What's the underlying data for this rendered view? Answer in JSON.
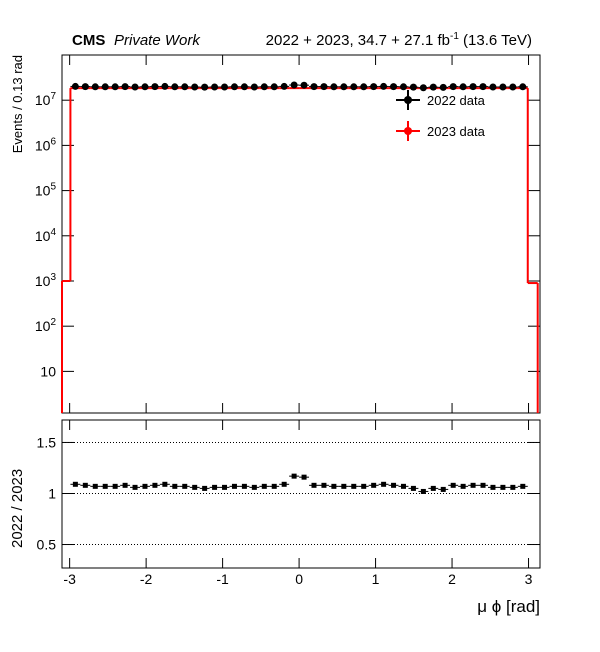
{
  "chart_data": [
    {
      "type": "histogram",
      "title": "CMS",
      "subtitle": "Private Work",
      "annotation": "2022 + 2023, 34.7 + 27.1 fb^-1 (13.6 TeV)",
      "y_label": "Events / 0.13 rad",
      "log_scale": true,
      "xlim": [
        -3.1,
        3.15
      ],
      "xticks": [
        -3,
        -2,
        -1,
        0,
        1,
        2,
        3
      ],
      "ylim": [
        1.2,
        100000000
      ],
      "yticks": [
        10,
        {
          "value": 100,
          "label": "10^2"
        },
        {
          "value": 1000,
          "label": "10^3"
        },
        {
          "value": 10000,
          "label": "10^4"
        },
        {
          "value": 100000,
          "label": "10^5"
        },
        {
          "value": 1000000,
          "label": "10^6"
        },
        {
          "value": 10000000,
          "label": "10^7"
        }
      ],
      "bins": [
        -3.12,
        -2.99,
        -2.86,
        -2.73,
        -2.6,
        -2.47,
        -2.34,
        -2.21,
        -2.08,
        -1.95,
        -1.82,
        -1.69,
        -1.56,
        -1.43,
        -1.3,
        -1.17,
        -1.04,
        -0.91,
        -0.78,
        -0.65,
        -0.52,
        -0.39,
        -0.26,
        -0.13,
        0,
        0.13,
        0.26,
        0.39,
        0.52,
        0.65,
        0.78,
        0.91,
        1.04,
        1.17,
        1.3,
        1.43,
        1.56,
        1.69,
        1.82,
        1.95,
        2.08,
        2.21,
        2.34,
        2.47,
        2.6,
        2.73,
        2.86,
        2.99,
        3.12
      ],
      "legend": "upper right",
      "series": [
        {
          "name": "2022 data",
          "color": "#000000",
          "style": "points",
          "values": [
            null,
            20170000,
            19980000,
            19800000,
            19800000,
            19800000,
            19980000,
            19610000,
            19800000,
            19980000,
            20170000,
            19800000,
            19800000,
            19610000,
            19430000,
            19610000,
            19610000,
            19800000,
            19800000,
            19610000,
            19800000,
            19800000,
            20170000,
            21650000,
            21460000,
            19980000,
            19980000,
            19800000,
            19800000,
            19800000,
            19800000,
            19980000,
            20170000,
            19980000,
            19800000,
            19430000,
            18870000,
            19430000,
            19240000,
            19980000,
            19800000,
            19980000,
            19980000,
            19610000,
            19610000,
            19610000,
            19800000,
            null
          ]
        },
        {
          "name": "2023 data",
          "color": "#ff0000",
          "style": "step",
          "values": [
            1000,
            18500000,
            18500000,
            18500000,
            18500000,
            18500000,
            18500000,
            18500000,
            18500000,
            18500000,
            18500000,
            18500000,
            18500000,
            18500000,
            18500000,
            18500000,
            18500000,
            18500000,
            18500000,
            18500000,
            18500000,
            18500000,
            18500000,
            18500000,
            18500000,
            18500000,
            18500000,
            18500000,
            18500000,
            18500000,
            18500000,
            18500000,
            18500000,
            18500000,
            18500000,
            18500000,
            18500000,
            18500000,
            18500000,
            18500000,
            18500000,
            18500000,
            18500000,
            18500000,
            18500000,
            18500000,
            18500000,
            900
          ]
        }
      ]
    },
    {
      "type": "scatter",
      "y_label": "2022 / 2023",
      "x_label": "μ ϕ [rad]",
      "xlim": [
        -3.1,
        3.15
      ],
      "xticks": [
        -3,
        -2,
        -1,
        0,
        1,
        2,
        3
      ],
      "ylim": [
        0.27,
        1.72
      ],
      "yticks": [
        0.5,
        1,
        1.5
      ],
      "grid": true,
      "color": "#000000",
      "x": [
        -2.925,
        -2.795,
        -2.665,
        -2.535,
        -2.405,
        -2.275,
        -2.145,
        -2.015,
        -1.885,
        -1.755,
        -1.625,
        -1.495,
        -1.365,
        -1.235,
        -1.105,
        -0.975,
        -0.845,
        -0.715,
        -0.585,
        -0.455,
        -0.325,
        -0.195,
        -0.065,
        0.065,
        0.195,
        0.325,
        0.455,
        0.585,
        0.715,
        0.845,
        0.975,
        1.105,
        1.235,
        1.365,
        1.495,
        1.625,
        1.755,
        1.885,
        2.015,
        2.145,
        2.275,
        2.405,
        2.535,
        2.665,
        2.795,
        2.925
      ],
      "values": [
        1.09,
        1.08,
        1.07,
        1.07,
        1.07,
        1.08,
        1.06,
        1.07,
        1.08,
        1.09,
        1.07,
        1.07,
        1.06,
        1.05,
        1.06,
        1.06,
        1.07,
        1.07,
        1.06,
        1.07,
        1.07,
        1.09,
        1.17,
        1.16,
        1.08,
        1.08,
        1.07,
        1.07,
        1.07,
        1.07,
        1.08,
        1.09,
        1.08,
        1.07,
        1.05,
        1.02,
        1.05,
        1.04,
        1.08,
        1.07,
        1.08,
        1.08,
        1.06,
        1.06,
        1.06,
        1.07
      ]
    }
  ]
}
